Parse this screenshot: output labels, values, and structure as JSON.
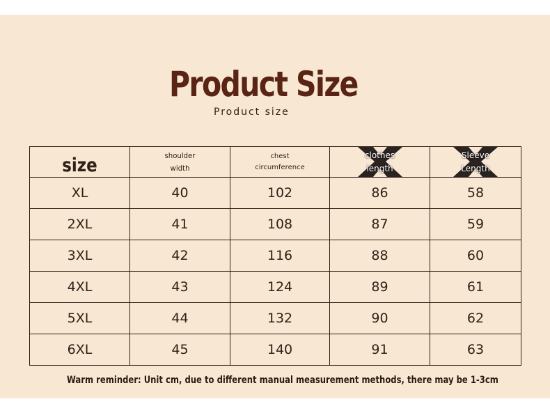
{
  "title": "Product Size",
  "subtitle": "Product size",
  "table": {
    "headers": {
      "size": "size",
      "shoulder": [
        "shoulder",
        "width"
      ],
      "chest": [
        "chest",
        "circumference"
      ],
      "length": [
        "clothes",
        "length"
      ],
      "sleeve": [
        "Sleeve",
        "Length"
      ]
    },
    "rows": [
      [
        "XL",
        "40",
        "102",
        "86",
        "58"
      ],
      [
        "2XL",
        "41",
        "108",
        "87",
        "59"
      ],
      [
        "3XL",
        "42",
        "116",
        "88",
        "60"
      ],
      [
        "4XL",
        "43",
        "124",
        "89",
        "61"
      ],
      [
        "5XL",
        "44",
        "132",
        "90",
        "62"
      ],
      [
        "6XL",
        "45",
        "140",
        "91",
        "63"
      ]
    ]
  },
  "note": "Warm reminder: Unit cm, due to different manual measurement methods, there may be 1-3cm",
  "colors": {
    "background": "#f8e8d3",
    "title": "#5a2414",
    "text": "#2e2117"
  }
}
